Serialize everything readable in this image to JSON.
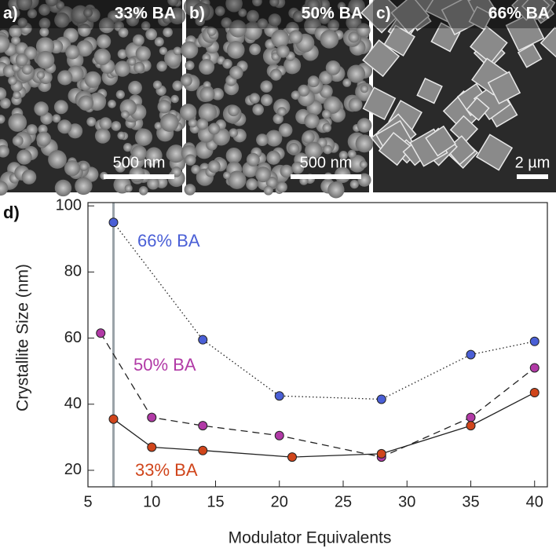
{
  "images": [
    {
      "label": "a)",
      "title": "33% BA",
      "scale_bar": "500 nm"
    },
    {
      "label": "b)",
      "title": "50% BA",
      "scale_bar": "500 nm"
    },
    {
      "label": "c)",
      "title": "66% BA",
      "scale_bar": "2 µm"
    }
  ],
  "chart_data": {
    "type": "line",
    "panel_label": "d)",
    "x_label": "Modulator Equivalents",
    "y_label": "Crystallite Size (nm)",
    "xlim": [
      5,
      41
    ],
    "ylim": [
      15,
      101
    ],
    "xticks": [
      5,
      10,
      15,
      20,
      25,
      30,
      35,
      40
    ],
    "yticks": [
      20,
      40,
      60,
      80,
      100
    ],
    "vline": 7,
    "vline_color": "#9aa3a8",
    "series": [
      {
        "name": "66% BA",
        "color": "#4a5fd6",
        "line_style": "dotted",
        "x": [
          7,
          14,
          20,
          28,
          35,
          40
        ],
        "values": [
          95,
          59.5,
          42.5,
          41.5,
          55,
          59
        ]
      },
      {
        "name": "50% BA",
        "color": "#b13aa6",
        "line_style": "dashed",
        "x": [
          6,
          10,
          14,
          20,
          28,
          35,
          40
        ],
        "values": [
          61.5,
          36,
          33.5,
          30.5,
          24,
          36,
          51
        ]
      },
      {
        "name": "33% BA",
        "color": "#d0451b",
        "line_style": "solid",
        "x": [
          7,
          10,
          14,
          21,
          28,
          35,
          40
        ],
        "values": [
          35.5,
          27,
          26,
          24,
          25,
          33.5,
          43.5
        ]
      }
    ]
  }
}
